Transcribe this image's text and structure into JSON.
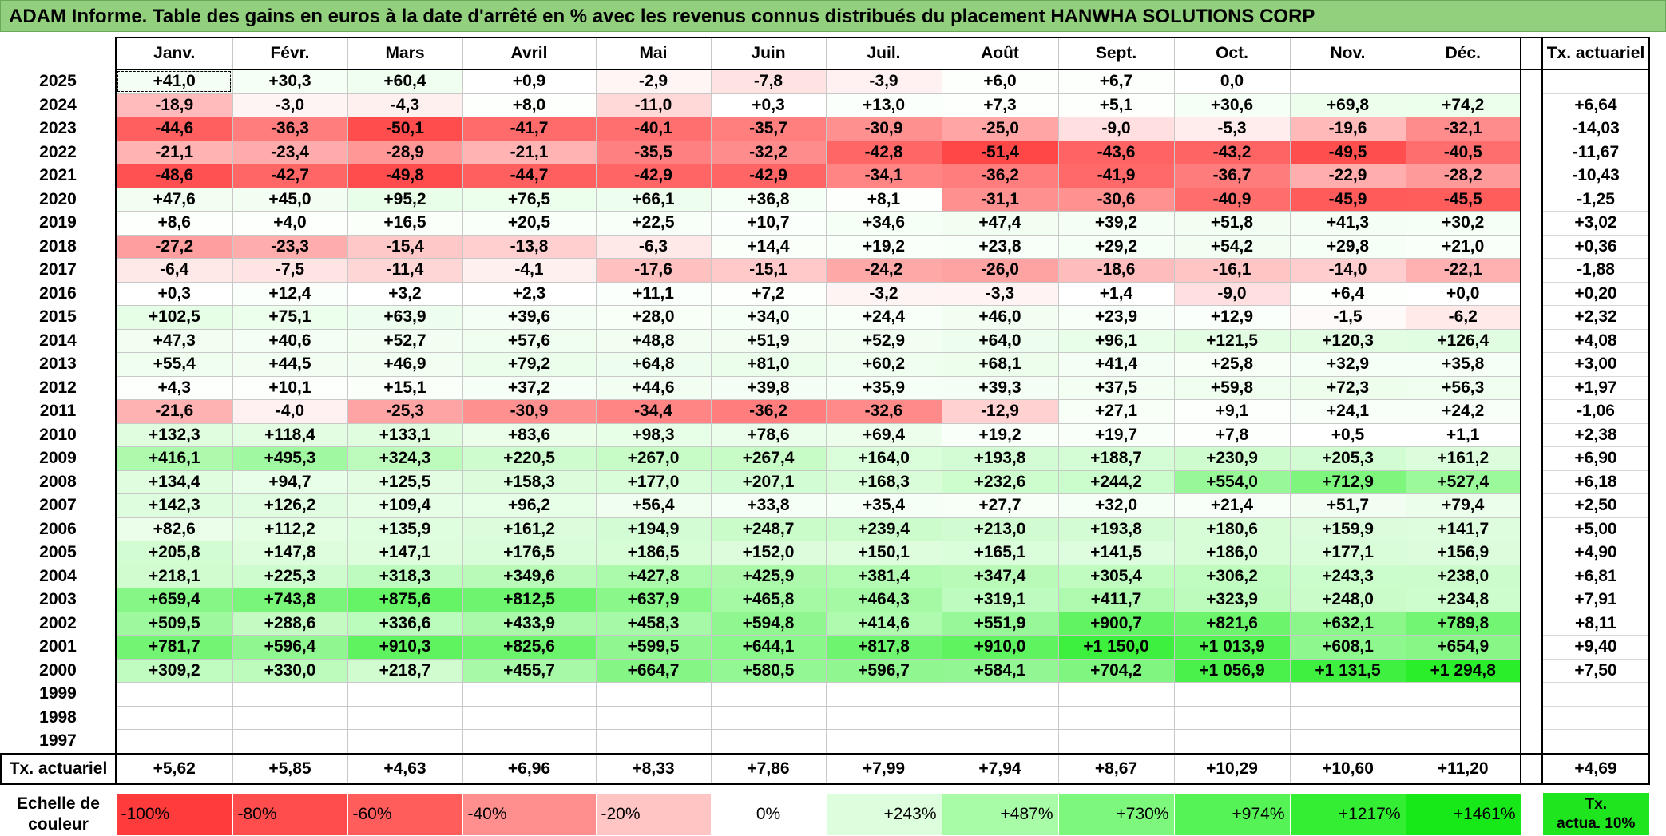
{
  "title": "ADAM Informe. Table des gains en euros à la date d'arrêté en % avec les revenus connus distribués du placement HANWHA SOLUTIONS CORP",
  "months": [
    "Janv.",
    "Févr.",
    "Mars",
    "Avril",
    "Mai",
    "Juin",
    "Juil.",
    "Août",
    "Sept.",
    "Oct.",
    "Nov.",
    "Déc."
  ],
  "tx_header": "Tx. actuariel",
  "rows": [
    {
      "year": "2025",
      "vals": [
        "+41,0",
        "+30,3",
        "+60,4",
        "+0,9",
        "-2,9",
        "-7,8",
        "-3,9",
        "+6,0",
        "+6,7",
        "0,0",
        "",
        ""
      ],
      "tx": ""
    },
    {
      "year": "2024",
      "vals": [
        "-18,9",
        "-3,0",
        "-4,3",
        "+8,0",
        "-11,0",
        "+0,3",
        "+13,0",
        "+7,3",
        "+5,1",
        "+30,6",
        "+69,8",
        "+74,2"
      ],
      "tx": "+6,64"
    },
    {
      "year": "2023",
      "vals": [
        "-44,6",
        "-36,3",
        "-50,1",
        "-41,7",
        "-40,1",
        "-35,7",
        "-30,9",
        "-25,0",
        "-9,0",
        "-5,3",
        "-19,6",
        "-32,1"
      ],
      "tx": "-14,03"
    },
    {
      "year": "2022",
      "vals": [
        "-21,1",
        "-23,4",
        "-28,9",
        "-21,1",
        "-35,5",
        "-32,2",
        "-42,8",
        "-51,4",
        "-43,6",
        "-43,2",
        "-49,5",
        "-40,5"
      ],
      "tx": "-11,67"
    },
    {
      "year": "2021",
      "vals": [
        "-48,6",
        "-42,7",
        "-49,8",
        "-44,7",
        "-42,9",
        "-42,9",
        "-34,1",
        "-36,2",
        "-41,9",
        "-36,7",
        "-22,9",
        "-28,2"
      ],
      "tx": "-10,43"
    },
    {
      "year": "2020",
      "vals": [
        "+47,6",
        "+45,0",
        "+95,2",
        "+76,5",
        "+66,1",
        "+36,8",
        "+8,1",
        "-31,1",
        "-30,6",
        "-40,9",
        "-45,9",
        "-45,5"
      ],
      "tx": "-1,25"
    },
    {
      "year": "2019",
      "vals": [
        "+8,6",
        "+4,0",
        "+16,5",
        "+20,5",
        "+22,5",
        "+10,7",
        "+34,6",
        "+47,4",
        "+39,2",
        "+51,8",
        "+41,3",
        "+30,2"
      ],
      "tx": "+3,02"
    },
    {
      "year": "2018",
      "vals": [
        "-27,2",
        "-23,3",
        "-15,4",
        "-13,8",
        "-6,3",
        "+14,4",
        "+19,2",
        "+23,8",
        "+29,2",
        "+54,2",
        "+29,8",
        "+21,0"
      ],
      "tx": "+0,36"
    },
    {
      "year": "2017",
      "vals": [
        "-6,4",
        "-7,5",
        "-11,4",
        "-4,1",
        "-17,6",
        "-15,1",
        "-24,2",
        "-26,0",
        "-18,6",
        "-16,1",
        "-14,0",
        "-22,1"
      ],
      "tx": "-1,88"
    },
    {
      "year": "2016",
      "vals": [
        "+0,3",
        "+12,4",
        "+3,2",
        "+2,3",
        "+11,1",
        "+7,2",
        "-3,2",
        "-3,3",
        "+1,4",
        "-9,0",
        "+6,4",
        "+0,0"
      ],
      "tx": "+0,20"
    },
    {
      "year": "2015",
      "vals": [
        "+102,5",
        "+75,1",
        "+63,9",
        "+39,6",
        "+28,0",
        "+34,0",
        "+24,4",
        "+46,0",
        "+23,9",
        "+12,9",
        "-1,5",
        "-6,2"
      ],
      "tx": "+2,32"
    },
    {
      "year": "2014",
      "vals": [
        "+47,3",
        "+40,6",
        "+52,7",
        "+57,6",
        "+48,8",
        "+51,9",
        "+52,9",
        "+64,0",
        "+96,1",
        "+121,5",
        "+120,3",
        "+126,4"
      ],
      "tx": "+4,08"
    },
    {
      "year": "2013",
      "vals": [
        "+55,4",
        "+44,5",
        "+46,9",
        "+79,2",
        "+64,8",
        "+81,0",
        "+60,2",
        "+68,1",
        "+41,4",
        "+25,8",
        "+32,9",
        "+35,8"
      ],
      "tx": "+3,00"
    },
    {
      "year": "2012",
      "vals": [
        "+4,3",
        "+10,1",
        "+15,1",
        "+37,2",
        "+44,6",
        "+39,8",
        "+35,9",
        "+39,3",
        "+37,5",
        "+59,8",
        "+72,3",
        "+56,3"
      ],
      "tx": "+1,97"
    },
    {
      "year": "2011",
      "vals": [
        "-21,6",
        "-4,0",
        "-25,3",
        "-30,9",
        "-34,4",
        "-36,2",
        "-32,6",
        "-12,9",
        "+27,1",
        "+9,1",
        "+24,1",
        "+24,2"
      ],
      "tx": "-1,06"
    },
    {
      "year": "2010",
      "vals": [
        "+132,3",
        "+118,4",
        "+133,1",
        "+83,6",
        "+98,3",
        "+78,6",
        "+69,4",
        "+19,2",
        "+19,7",
        "+7,8",
        "+0,5",
        "+1,1"
      ],
      "tx": "+2,38"
    },
    {
      "year": "2009",
      "vals": [
        "+416,1",
        "+495,3",
        "+324,3",
        "+220,5",
        "+267,0",
        "+267,4",
        "+164,0",
        "+193,8",
        "+188,7",
        "+230,9",
        "+205,3",
        "+161,2"
      ],
      "tx": "+6,90"
    },
    {
      "year": "2008",
      "vals": [
        "+134,4",
        "+94,7",
        "+125,5",
        "+158,3",
        "+177,0",
        "+207,1",
        "+168,3",
        "+232,6",
        "+244,2",
        "+554,0",
        "+712,9",
        "+527,4"
      ],
      "tx": "+6,18"
    },
    {
      "year": "2007",
      "vals": [
        "+142,3",
        "+126,2",
        "+109,4",
        "+96,2",
        "+56,4",
        "+33,8",
        "+35,4",
        "+27,7",
        "+32,0",
        "+21,4",
        "+51,7",
        "+79,4"
      ],
      "tx": "+2,50"
    },
    {
      "year": "2006",
      "vals": [
        "+82,6",
        "+112,2",
        "+135,9",
        "+161,2",
        "+194,9",
        "+248,7",
        "+239,4",
        "+213,0",
        "+193,8",
        "+180,6",
        "+159,9",
        "+141,7"
      ],
      "tx": "+5,00"
    },
    {
      "year": "2005",
      "vals": [
        "+205,8",
        "+147,8",
        "+147,1",
        "+176,5",
        "+186,5",
        "+152,0",
        "+150,1",
        "+165,1",
        "+141,5",
        "+186,0",
        "+177,1",
        "+156,9"
      ],
      "tx": "+4,90"
    },
    {
      "year": "2004",
      "vals": [
        "+218,1",
        "+225,3",
        "+318,3",
        "+349,6",
        "+427,8",
        "+425,9",
        "+381,4",
        "+347,4",
        "+305,4",
        "+306,2",
        "+243,3",
        "+238,0"
      ],
      "tx": "+6,81"
    },
    {
      "year": "2003",
      "vals": [
        "+659,4",
        "+743,8",
        "+875,6",
        "+812,5",
        "+637,9",
        "+465,8",
        "+464,3",
        "+319,1",
        "+411,7",
        "+323,9",
        "+248,0",
        "+234,8"
      ],
      "tx": "+7,91"
    },
    {
      "year": "2002",
      "vals": [
        "+509,5",
        "+288,6",
        "+336,6",
        "+433,9",
        "+458,3",
        "+594,8",
        "+414,6",
        "+551,9",
        "+900,7",
        "+821,6",
        "+632,1",
        "+789,8"
      ],
      "tx": "+8,11"
    },
    {
      "year": "2001",
      "vals": [
        "+781,7",
        "+596,4",
        "+910,3",
        "+825,6",
        "+599,5",
        "+644,1",
        "+817,8",
        "+910,0",
        "+1 150,0",
        "+1 013,9",
        "+608,1",
        "+654,9"
      ],
      "tx": "+9,40"
    },
    {
      "year": "2000",
      "vals": [
        "+309,2",
        "+330,0",
        "+218,7",
        "+455,7",
        "+664,7",
        "+580,5",
        "+596,7",
        "+584,1",
        "+704,2",
        "+1 056,9",
        "+1 131,5",
        "+1 294,8"
      ],
      "tx": "+7,50"
    },
    {
      "year": "1999",
      "vals": [
        "",
        "",
        "",
        "",
        "",
        "",
        "",
        "",
        "",
        "",
        "",
        ""
      ],
      "tx": ""
    },
    {
      "year": "1998",
      "vals": [
        "",
        "",
        "",
        "",
        "",
        "",
        "",
        "",
        "",
        "",
        "",
        ""
      ],
      "tx": ""
    },
    {
      "year": "1997",
      "vals": [
        "",
        "",
        "",
        "",
        "",
        "",
        "",
        "",
        "",
        "",
        "",
        ""
      ],
      "tx": ""
    }
  ],
  "footer": {
    "label": "Tx. actuariel",
    "vals": [
      "+5,62",
      "+5,85",
      "+4,63",
      "+6,96",
      "+8,33",
      "+7,86",
      "+7,99",
      "+7,94",
      "+8,67",
      "+10,29",
      "+10,60",
      "+11,20"
    ],
    "tx": "+4,69"
  },
  "scale": {
    "label_line1": "Echelle de",
    "label_line2": "couleur",
    "items": [
      {
        "label": "-100%",
        "color": "#ff3b3b"
      },
      {
        "label": "-80%",
        "color": "#ff4d4d"
      },
      {
        "label": "-60%",
        "color": "#ff5c5c"
      },
      {
        "label": "-40%",
        "color": "#ff8e8e"
      },
      {
        "label": "-20%",
        "color": "#ffc4c4"
      },
      {
        "label": "0%",
        "color": "#ffffff"
      },
      {
        "label": "+243%",
        "color": "#dcfedc"
      },
      {
        "label": "+487%",
        "color": "#a8fca8"
      },
      {
        "label": "+730%",
        "color": "#7df87d"
      },
      {
        "label": "+974%",
        "color": "#55f355"
      },
      {
        "label": "+1217%",
        "color": "#33ee33"
      },
      {
        "label": "+1461%",
        "color": "#17e817"
      }
    ],
    "tx_line1": "Tx.",
    "tx_line2": "actua. 10%",
    "tx_color": "#1ee51e"
  }
}
